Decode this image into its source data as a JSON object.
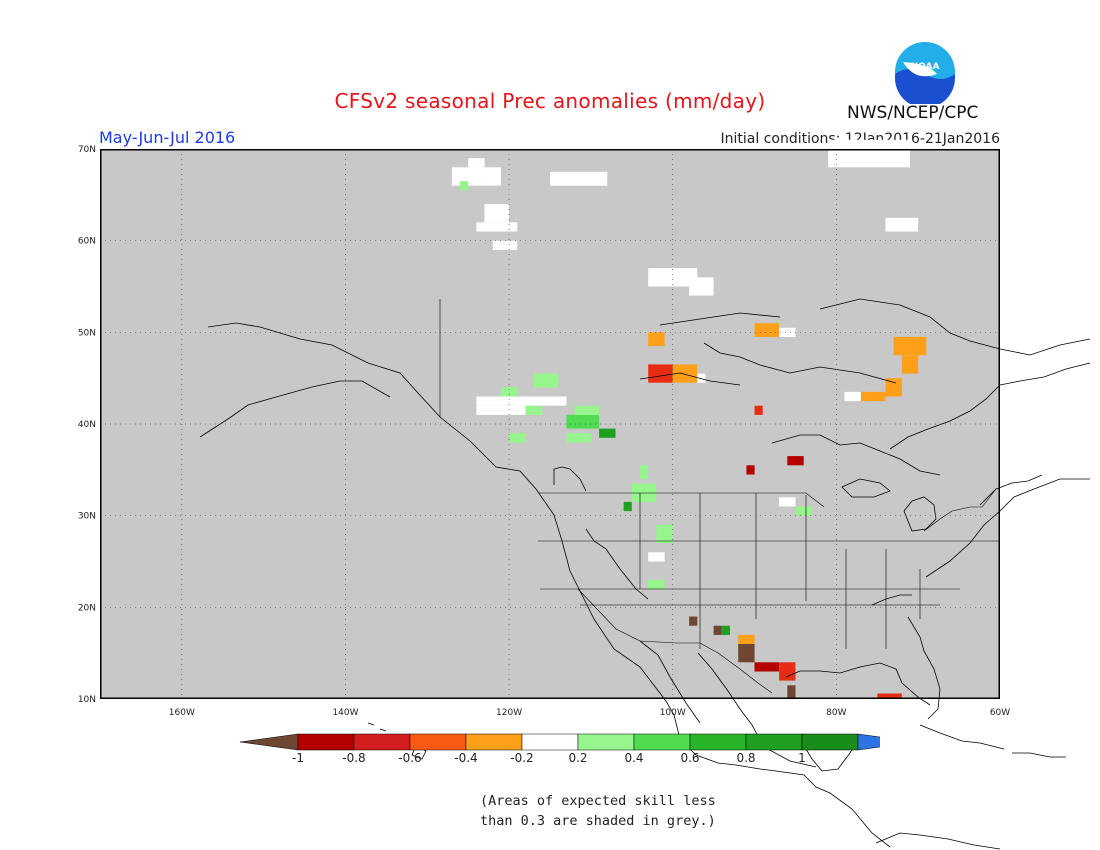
{
  "header": {
    "title": "CFSv2 seasonal Prec anomalies (mm/day)",
    "valid_period": "May-Jun-Jul 2016",
    "initial_conditions": "Initial conditions: 12Jan2016-21Jan2016",
    "agency": "NWS/NCEP/CPC",
    "logo_text": "NOAA"
  },
  "map": {
    "projection": "lat-lon",
    "lon_range": [
      -170,
      -60
    ],
    "lat_range": [
      10,
      70
    ],
    "background_color": "#c8c8c8",
    "coastline_color": "#000000",
    "lat_ticks": [
      {
        "value": 70,
        "label": "70N"
      },
      {
        "value": 60,
        "label": "60N"
      },
      {
        "value": 50,
        "label": "50N"
      },
      {
        "value": 40,
        "label": "40N"
      },
      {
        "value": 30,
        "label": "30N"
      },
      {
        "value": 20,
        "label": "20N"
      },
      {
        "value": 10,
        "label": "10N"
      }
    ],
    "lon_ticks": [
      {
        "value": -160,
        "label": "160W"
      },
      {
        "value": -140,
        "label": "140W"
      },
      {
        "value": -120,
        "label": "120W"
      },
      {
        "value": -100,
        "label": "100W"
      },
      {
        "value": -80,
        "label": "80W"
      },
      {
        "value": -60,
        "label": "60W"
      }
    ],
    "anomaly_cells": [
      {
        "lon": -127,
        "lat": 66,
        "w": 6,
        "h": 2,
        "color": "#ffffff"
      },
      {
        "lon": -125,
        "lat": 68,
        "w": 2,
        "h": 1,
        "color": "#ffffff"
      },
      {
        "lon": -126,
        "lat": 65.5,
        "w": 1,
        "h": 1,
        "color": "#96f58c"
      },
      {
        "lon": -115,
        "lat": 66,
        "w": 7,
        "h": 1.5,
        "color": "#ffffff"
      },
      {
        "lon": -123,
        "lat": 62,
        "w": 3,
        "h": 2,
        "color": "#ffffff"
      },
      {
        "lon": -124,
        "lat": 61,
        "w": 5,
        "h": 1,
        "color": "#ffffff"
      },
      {
        "lon": -122,
        "lat": 59,
        "w": 3,
        "h": 1,
        "color": "#ffffff"
      },
      {
        "lon": -103,
        "lat": 55,
        "w": 6,
        "h": 2,
        "color": "#ffffff"
      },
      {
        "lon": -98,
        "lat": 54,
        "w": 3,
        "h": 2,
        "color": "#ffffff"
      },
      {
        "lon": -81,
        "lat": 68,
        "w": 10,
        "h": 3,
        "color": "#ffffff"
      },
      {
        "lon": -74,
        "lat": 61,
        "w": 4,
        "h": 1.5,
        "color": "#ffffff"
      },
      {
        "lon": -87,
        "lat": 49.5,
        "w": 2,
        "h": 1,
        "color": "#ffffff"
      },
      {
        "lon": -103,
        "lat": 48.5,
        "w": 2,
        "h": 1.5,
        "color": "#ffa01a"
      },
      {
        "lon": -90,
        "lat": 49.5,
        "w": 3,
        "h": 1.5,
        "color": "#ffa01a"
      },
      {
        "lon": -103,
        "lat": 44.5,
        "w": 3,
        "h": 2,
        "color": "#e62d14"
      },
      {
        "lon": -100,
        "lat": 44.5,
        "w": 3,
        "h": 2,
        "color": "#ffa01a"
      },
      {
        "lon": -97,
        "lat": 44.5,
        "w": 1,
        "h": 1,
        "color": "#ffffff"
      },
      {
        "lon": -90,
        "lat": 41,
        "w": 1,
        "h": 1,
        "color": "#e62d14"
      },
      {
        "lon": -73,
        "lat": 47.5,
        "w": 4,
        "h": 2,
        "color": "#ffa01a"
      },
      {
        "lon": -72,
        "lat": 45.5,
        "w": 2,
        "h": 2,
        "color": "#ffa01a"
      },
      {
        "lon": -74,
        "lat": 43,
        "w": 2,
        "h": 2,
        "color": "#ffa01a"
      },
      {
        "lon": -77,
        "lat": 42.5,
        "w": 3,
        "h": 1,
        "color": "#ffa01a"
      },
      {
        "lon": -79,
        "lat": 42.5,
        "w": 2,
        "h": 1,
        "color": "#ffffff"
      },
      {
        "lon": -124,
        "lat": 42,
        "w": 11,
        "h": 1,
        "color": "#ffffff"
      },
      {
        "lon": -124,
        "lat": 41,
        "w": 8,
        "h": 1,
        "color": "#ffffff"
      },
      {
        "lon": -121,
        "lat": 43,
        "w": 2,
        "h": 1,
        "color": "#96f58c"
      },
      {
        "lon": -117,
        "lat": 44,
        "w": 3,
        "h": 1.5,
        "color": "#96f58c"
      },
      {
        "lon": -118,
        "lat": 41,
        "w": 2,
        "h": 1,
        "color": "#96f58c"
      },
      {
        "lon": -120,
        "lat": 38,
        "w": 2,
        "h": 1,
        "color": "#96f58c"
      },
      {
        "lon": -113,
        "lat": 39.5,
        "w": 4,
        "h": 1.5,
        "color": "#50dc50"
      },
      {
        "lon": -112,
        "lat": 41,
        "w": 3,
        "h": 1,
        "color": "#96f58c"
      },
      {
        "lon": -109,
        "lat": 38.5,
        "w": 2,
        "h": 1,
        "color": "#1ea01e"
      },
      {
        "lon": -113,
        "lat": 38,
        "w": 3,
        "h": 1,
        "color": "#96f58c"
      },
      {
        "lon": -104,
        "lat": 34,
        "w": 1,
        "h": 1.5,
        "color": "#96f58c"
      },
      {
        "lon": -105,
        "lat": 31.5,
        "w": 3,
        "h": 2,
        "color": "#96f58c"
      },
      {
        "lon": -106,
        "lat": 30.5,
        "w": 1,
        "h": 1,
        "color": "#1ea01e"
      },
      {
        "lon": -102,
        "lat": 27,
        "w": 2,
        "h": 2,
        "color": "#96f58c"
      },
      {
        "lon": -103,
        "lat": 22,
        "w": 2,
        "h": 1,
        "color": "#96f58c"
      },
      {
        "lon": -103,
        "lat": 25,
        "w": 2,
        "h": 1,
        "color": "#ffffff"
      },
      {
        "lon": -86,
        "lat": 35.5,
        "w": 2,
        "h": 1,
        "color": "#b40000"
      },
      {
        "lon": -91,
        "lat": 34.5,
        "w": 1,
        "h": 1,
        "color": "#b40000"
      },
      {
        "lon": -87,
        "lat": 31,
        "w": 2,
        "h": 1,
        "color": "#ffffff"
      },
      {
        "lon": -85,
        "lat": 30,
        "w": 2,
        "h": 1,
        "color": "#96f58c"
      },
      {
        "lon": -98,
        "lat": 18,
        "w": 1,
        "h": 1,
        "color": "#6e4632"
      },
      {
        "lon": -95,
        "lat": 17,
        "w": 1,
        "h": 1,
        "color": "#6e4632"
      },
      {
        "lon": -94,
        "lat": 17,
        "w": 1,
        "h": 1,
        "color": "#1ea01e"
      },
      {
        "lon": -92,
        "lat": 16,
        "w": 2,
        "h": 1,
        "color": "#ffa01a"
      },
      {
        "lon": -92,
        "lat": 14,
        "w": 2,
        "h": 2,
        "color": "#6e4632"
      },
      {
        "lon": -90,
        "lat": 13,
        "w": 3,
        "h": 1,
        "color": "#b40000"
      },
      {
        "lon": -87,
        "lat": 12,
        "w": 2,
        "h": 2,
        "color": "#e62d14"
      },
      {
        "lon": -86,
        "lat": 10,
        "w": 1,
        "h": 1.5,
        "color": "#6e4632"
      },
      {
        "lon": -75,
        "lat": 10,
        "w": 3,
        "h": 0.6,
        "color": "#e62d14"
      }
    ]
  },
  "colorbar": {
    "colors": [
      "#6e4632",
      "#b40000",
      "#d21e1e",
      "#fa5a14",
      "#ffa01a",
      "#ffffff",
      "#96f58c",
      "#50dc50",
      "#28b428",
      "#1ea01e",
      "#1a8c1a",
      "#2c73e6"
    ],
    "tick_labels": [
      "-1",
      "-0.8",
      "-0.6",
      "-0.4",
      "-0.2",
      "0.2",
      "0.4",
      "0.6",
      "0.8",
      "1"
    ]
  },
  "note": {
    "line1": "(Areas of expected skill less",
    "line2": "than 0.3 are shaded in grey.)"
  }
}
